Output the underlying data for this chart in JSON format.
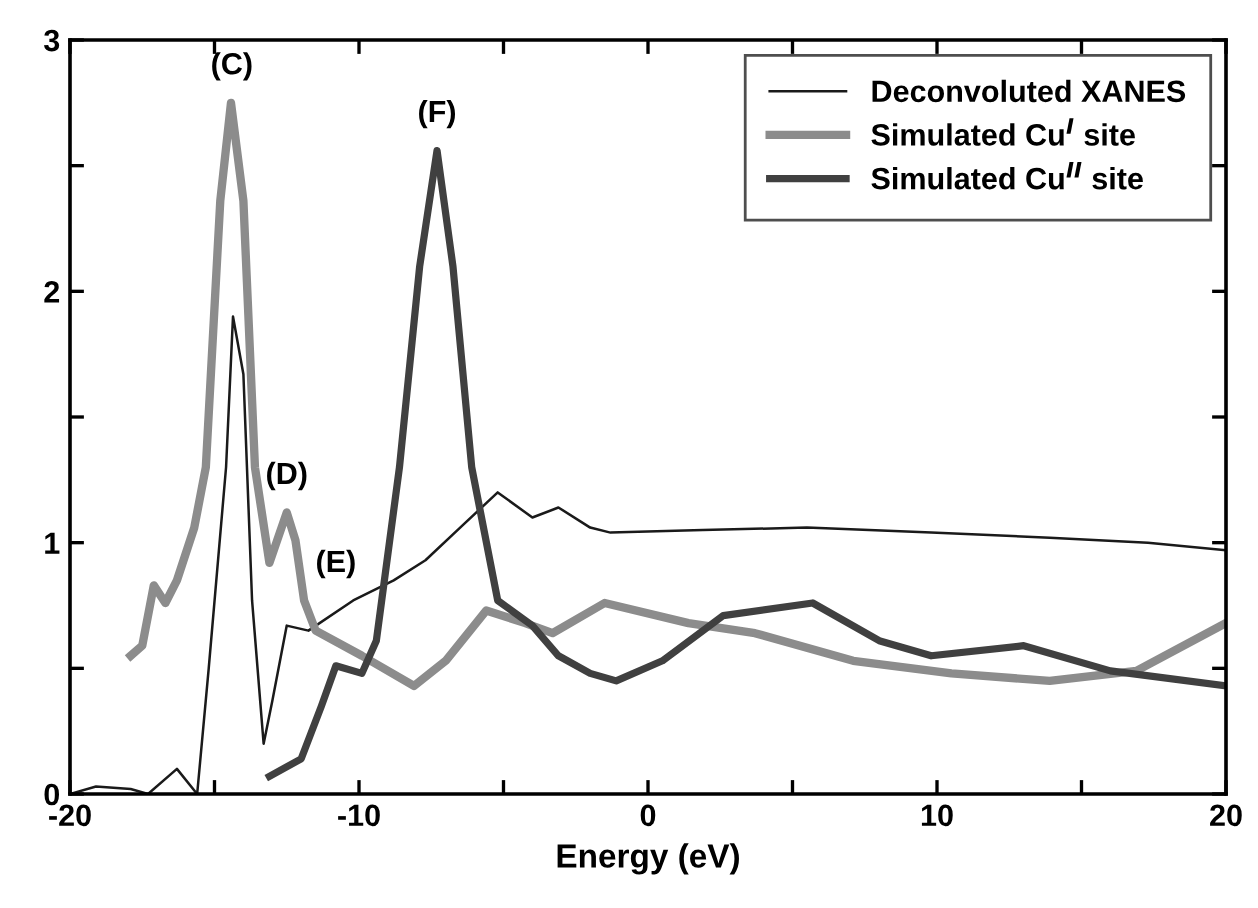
{
  "chart_data": {
    "type": "line",
    "xlabel": "Energy (eV)",
    "xlim": [
      -20,
      20
    ],
    "ylim": [
      0,
      3
    ],
    "xticks": [
      -20,
      {
        "value": -15,
        "label": null
      },
      -10,
      {
        "value": -5,
        "label": null
      },
      0,
      {
        "value": 5,
        "label": null
      },
      10,
      {
        "value": 15,
        "label": null
      },
      20
    ],
    "yticks": [
      0,
      {
        "value": 0.5,
        "label": null
      },
      1,
      {
        "value": 1.5,
        "label": null
      },
      2,
      {
        "value": 2.5,
        "label": null
      },
      3
    ],
    "grid": false,
    "legend": "top right",
    "marker": "none",
    "line_style": "solid",
    "series": [
      {
        "name": "Deconvoluted XANES",
        "color": "#1a1a1a",
        "x": [
          -20,
          -19.1,
          -17.9,
          -17.3,
          -16.3,
          -15.6,
          -15.2,
          -14.6,
          -14.36,
          -14.0,
          -13.7,
          -13.3,
          -13.0,
          -12.5,
          -11.75,
          -10.2,
          -8.8,
          -7.7,
          -6.5,
          -5.2,
          -4.0,
          -3.1,
          -2.0,
          -1.3,
          1.9,
          5.5,
          9.8,
          13.9,
          17.3,
          20
        ],
        "values": [
          0,
          0.03,
          0.02,
          0.0,
          0.1,
          0.0,
          0.5,
          1.3,
          1.9,
          1.67,
          0.77,
          0.2,
          0.37,
          0.67,
          0.65,
          0.77,
          0.85,
          0.93,
          1.06,
          1.2,
          1.1,
          1.14,
          1.06,
          1.04,
          1.05,
          1.06,
          1.04,
          1.02,
          1.0,
          0.97
        ]
      },
      {
        "name": "Simulated Cu$^{I}$ site",
        "color": "#8c8c8c",
        "x": [
          -17.9,
          -17.5,
          -17.1,
          -16.7,
          -16.3,
          -15.7,
          -15.3,
          -14.8,
          -14.43,
          -14.0,
          -13.6,
          -13.1,
          -12.5,
          -12.2,
          -11.9,
          -11.5,
          -9.9,
          -8.1,
          -7.0,
          -5.6,
          -4.25,
          -3.3,
          -1.5,
          1.4,
          3.7,
          7.1,
          10.5,
          13.9,
          16.9,
          20
        ],
        "values": [
          0.55,
          0.59,
          0.83,
          0.76,
          0.85,
          1.06,
          1.3,
          2.36,
          2.75,
          2.36,
          1.3,
          0.92,
          1.12,
          1.01,
          0.77,
          0.65,
          0.55,
          0.43,
          0.53,
          0.73,
          0.68,
          0.64,
          0.76,
          0.68,
          0.64,
          0.53,
          0.48,
          0.45,
          0.49,
          0.68
        ]
      },
      {
        "name": "Simulated Cu$^{II}$ site",
        "color": "#404040",
        "x": [
          -13.1,
          -12.0,
          -11.3,
          -10.8,
          -9.9,
          -9.4,
          -8.6,
          -7.9,
          -7.3,
          -6.75,
          -6.1,
          -5.2,
          -4.0,
          -3.1,
          -2.0,
          -1.1,
          0.5,
          2.6,
          5.7,
          8.0,
          9.8,
          13.0,
          16.0,
          20
        ],
        "values": [
          0.07,
          0.14,
          0.35,
          0.51,
          0.48,
          0.61,
          1.3,
          2.1,
          2.56,
          2.1,
          1.3,
          0.77,
          0.67,
          0.55,
          0.48,
          0.45,
          0.53,
          0.71,
          0.76,
          0.61,
          0.55,
          0.59,
          0.49,
          0.43
        ]
      }
    ],
    "annotations": [
      {
        "text": "(C)",
        "x": -14.4,
        "y": 2.75
      },
      {
        "text": "(D)",
        "x": -12.5,
        "y": 1.12
      },
      {
        "text": "(E)",
        "x": -10.8,
        "y": 0.77
      },
      {
        "text": "(F)",
        "x": -7.3,
        "y": 2.56
      }
    ]
  }
}
